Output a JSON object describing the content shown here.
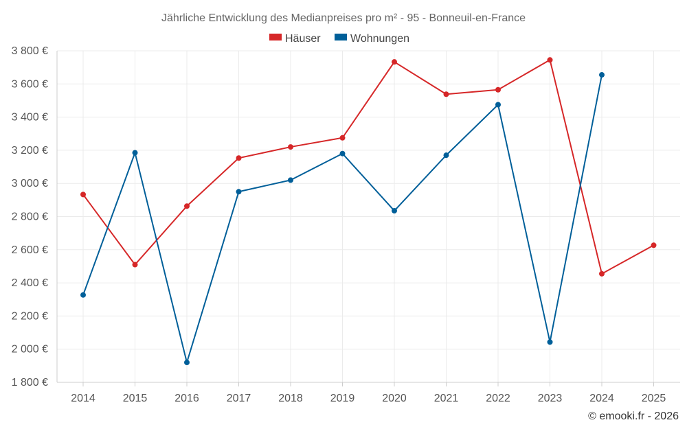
{
  "chart_data": {
    "type": "line",
    "title": "Jährliche Entwicklung des Medianpreises pro m² - 95 - Bonneuil-en-France",
    "xlabel": "",
    "ylabel": "",
    "categories": [
      "2014",
      "2015",
      "2016",
      "2017",
      "2018",
      "2019",
      "2020",
      "2021",
      "2022",
      "2023",
      "2024",
      "2025"
    ],
    "ylim": [
      1800,
      3800
    ],
    "yticks": [
      1800,
      2000,
      2200,
      2400,
      2600,
      2800,
      3000,
      3200,
      3400,
      3600,
      3800
    ],
    "ytick_labels": [
      "1 800 €",
      "2 000 €",
      "2 200 €",
      "2 400 €",
      "2 600 €",
      "2 800 €",
      "3 000 €",
      "3 200 €",
      "3 400 €",
      "3 600 €",
      "3 800 €"
    ],
    "grid": true,
    "legend_position": "top-center",
    "series": [
      {
        "name": "Häuser",
        "color": "#d62728",
        "values": [
          2933,
          2510,
          2863,
          3153,
          3220,
          3275,
          3733,
          3538,
          3565,
          3745,
          2455,
          2627
        ]
      },
      {
        "name": "Wohnungen",
        "color": "#005f99",
        "values": [
          2327,
          3185,
          1920,
          2950,
          3020,
          3180,
          2835,
          3170,
          3475,
          2043,
          3655,
          null
        ]
      }
    ]
  },
  "credit": "© emooki.fr - 2026"
}
